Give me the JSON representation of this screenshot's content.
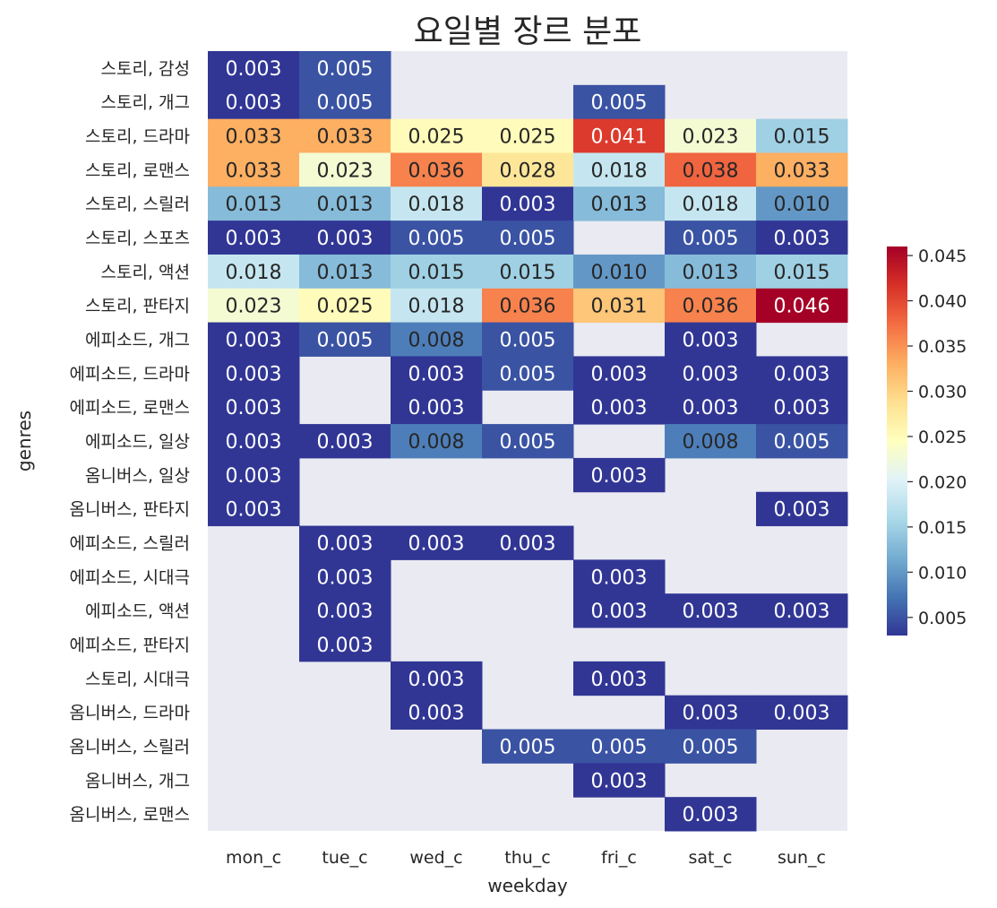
{
  "chart_data": {
    "type": "heatmap",
    "title": "요일별 장르 분포",
    "xlabel": "weekday",
    "ylabel": "genres",
    "x_categories": [
      "mon_c",
      "tue_c",
      "wed_c",
      "thu_c",
      "fri_c",
      "sat_c",
      "sun_c"
    ],
    "y_categories": [
      "스토리, 감성",
      "스토리, 개그",
      "스토리, 드라마",
      "스토리, 로맨스",
      "스토리, 스릴러",
      "스토리, 스포츠",
      "스토리, 액션",
      "스토리, 판타지",
      "에피소드, 개그",
      "에피소드, 드라마",
      "에피소드, 로맨스",
      "에피소드, 일상",
      "옴니버스, 일상",
      "옴니버스, 판타지",
      "에피소드, 스릴러",
      "에피소드, 시대극",
      "에피소드, 액션",
      "에피소드, 판타지",
      "스토리, 시대극",
      "옴니버스, 드라마",
      "옴니버스, 스릴러",
      "옴니버스, 개그",
      "옴니버스, 로맨스"
    ],
    "values": [
      [
        0.003,
        0.005,
        null,
        null,
        null,
        null,
        null
      ],
      [
        0.003,
        0.005,
        null,
        null,
        0.005,
        null,
        null
      ],
      [
        0.033,
        0.033,
        0.025,
        0.025,
        0.041,
        0.023,
        0.015
      ],
      [
        0.033,
        0.023,
        0.036,
        0.028,
        0.018,
        0.038,
        0.033
      ],
      [
        0.013,
        0.013,
        0.018,
        0.003,
        0.013,
        0.018,
        0.01
      ],
      [
        0.003,
        0.003,
        0.005,
        0.005,
        null,
        0.005,
        0.003
      ],
      [
        0.018,
        0.013,
        0.015,
        0.015,
        0.01,
        0.013,
        0.015
      ],
      [
        0.023,
        0.025,
        0.018,
        0.036,
        0.031,
        0.036,
        0.046
      ],
      [
        0.003,
        0.005,
        0.008,
        0.005,
        null,
        0.003,
        null
      ],
      [
        0.003,
        null,
        0.003,
        0.005,
        0.003,
        0.003,
        0.003
      ],
      [
        0.003,
        null,
        0.003,
        null,
        0.003,
        0.003,
        0.003
      ],
      [
        0.003,
        0.003,
        0.008,
        0.005,
        null,
        0.008,
        0.005
      ],
      [
        0.003,
        null,
        null,
        null,
        0.003,
        null,
        null
      ],
      [
        0.003,
        null,
        null,
        null,
        null,
        null,
        0.003
      ],
      [
        null,
        0.003,
        0.003,
        0.003,
        null,
        null,
        null
      ],
      [
        null,
        0.003,
        null,
        null,
        0.003,
        null,
        null
      ],
      [
        null,
        0.003,
        null,
        null,
        0.003,
        0.003,
        0.003
      ],
      [
        null,
        0.003,
        null,
        null,
        null,
        null,
        null
      ],
      [
        null,
        null,
        0.003,
        null,
        0.003,
        null,
        null
      ],
      [
        null,
        null,
        0.003,
        null,
        null,
        0.003,
        0.003
      ],
      [
        null,
        null,
        null,
        0.005,
        0.005,
        0.005,
        null
      ],
      [
        null,
        null,
        null,
        null,
        0.003,
        null,
        null
      ],
      [
        null,
        null,
        null,
        null,
        null,
        0.003,
        null
      ]
    ],
    "colormap": "RdYlBu_r",
    "colormap_stops": [
      "#313695",
      "#4575b4",
      "#74add1",
      "#abd9e9",
      "#e0f3f8",
      "#ffffbf",
      "#fee090",
      "#fdae61",
      "#f46d43",
      "#d73027",
      "#a50026"
    ],
    "vmin": 0.003,
    "vmax": 0.046,
    "colorbar_ticks": [
      "0.005",
      "0.010",
      "0.015",
      "0.020",
      "0.025",
      "0.030",
      "0.035",
      "0.040",
      "0.045"
    ],
    "missing_color": "#eaeaf2",
    "annotations_format": "0.000"
  }
}
